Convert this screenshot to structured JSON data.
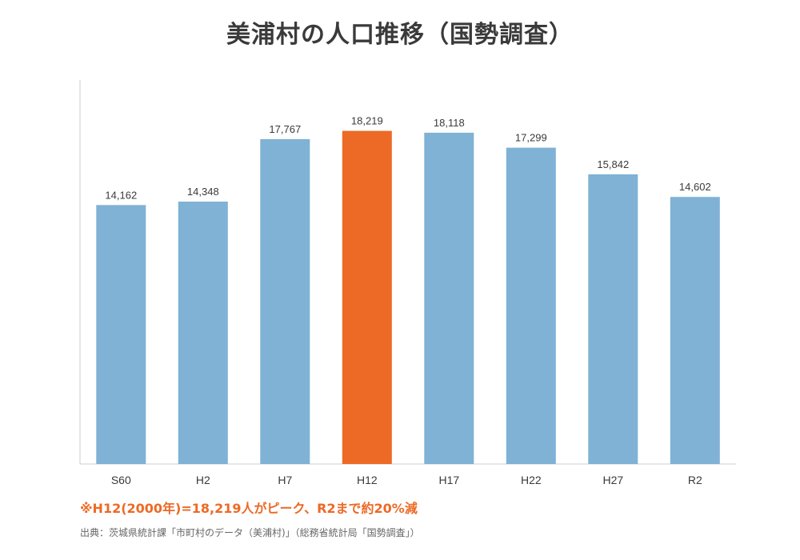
{
  "chart_data": {
    "type": "bar",
    "title": "美浦村の人口推移（国勢調査）",
    "xlabel": "",
    "ylabel": "",
    "categories": [
      "S60",
      "H2",
      "H7",
      "H12",
      "H17",
      "H22",
      "H27",
      "R2"
    ],
    "values": [
      14162,
      14348,
      17767,
      18219,
      18118,
      17299,
      15842,
      14602
    ],
    "value_labels": [
      "14,162",
      "14,348",
      "17,767",
      "18,219",
      "18,118",
      "17,299",
      "15,842",
      "14,602"
    ],
    "highlight_category": "H12",
    "ylim": [
      0,
      21000
    ],
    "grid": false,
    "legend": "none",
    "colors": {
      "bar": "#7fb2d5",
      "highlight": "#ec6a25",
      "axis": "#cccccc",
      "note": "#ec6a25"
    }
  },
  "note": "※H12(2000年)=18,219人がピーク、R2まで約20%減",
  "source": "出典：茨城県統計課「市町村のデータ（美浦村)」（総務省統計局「国勢調査」）"
}
